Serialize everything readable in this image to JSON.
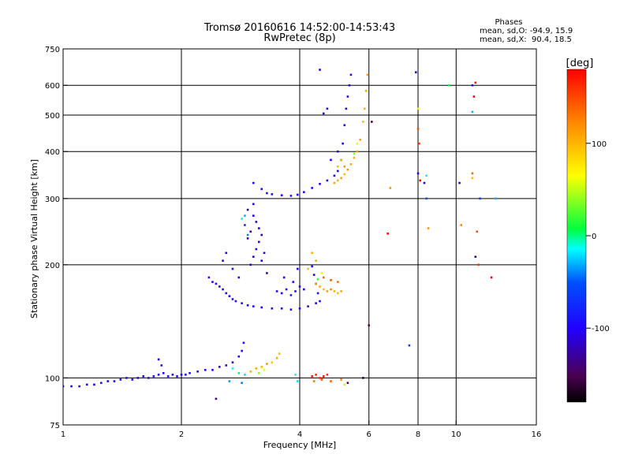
{
  "chart_data": {
    "type": "scatter",
    "title": "Tromsø 20160616 14:52:00-14:53:43",
    "subtitle": "RwPretec (8p)",
    "xlabel": "Frequency [MHz]",
    "ylabel": "Stationary phase Virtual Height [km]",
    "x_scale": "log",
    "y_scale": "log",
    "xlim": [
      1,
      16
    ],
    "ylim": [
      75,
      750
    ],
    "grid": true,
    "x_ticks": [
      {
        "value": 1,
        "label": "1"
      },
      {
        "value": 2,
        "label": "2"
      },
      {
        "value": 4,
        "label": "4"
      },
      {
        "value": 6,
        "label": "6"
      },
      {
        "value": 8,
        "label": "8"
      },
      {
        "value": 10,
        "label": "10"
      },
      {
        "value": 16,
        "label": "16"
      }
    ],
    "x_grid": [
      2,
      4,
      6,
      8,
      10
    ],
    "y_ticks": [
      {
        "value": 75,
        "label": "75"
      },
      {
        "value": 100,
        "label": "100"
      },
      {
        "value": 200,
        "label": "200"
      },
      {
        "value": 300,
        "label": "300"
      },
      {
        "value": 400,
        "label": "400"
      },
      {
        "value": 500,
        "label": "500"
      },
      {
        "value": 600,
        "label": "600"
      },
      {
        "value": 750,
        "label": "750"
      }
    ],
    "y_grid": [
      100,
      200,
      300,
      400,
      500,
      600
    ],
    "stats": {
      "heading": "Phases",
      "line1": "mean, sd,O: -94.9, 15.9",
      "line2": "mean, sd,X:  90.4, 18.5"
    },
    "colorbar": {
      "label": "[deg]",
      "range": [
        -180,
        180
      ],
      "ticks": [
        {
          "value": 100,
          "label": "100"
        },
        {
          "value": 0,
          "label": "0"
        },
        {
          "value": -100,
          "label": "-100"
        }
      ]
    },
    "series": [
      {
        "points": [
          [
            1.0,
            95,
            -95
          ],
          [
            1.05,
            95,
            -100
          ],
          [
            1.1,
            95,
            -90
          ],
          [
            1.15,
            96,
            -95
          ],
          [
            1.2,
            96,
            -100
          ],
          [
            1.25,
            97,
            -92
          ],
          [
            1.3,
            98,
            -98
          ],
          [
            1.35,
            98,
            -95
          ],
          [
            1.4,
            99,
            -100
          ],
          [
            1.45,
            100,
            -90
          ],
          [
            1.5,
            99,
            -95
          ],
          [
            1.55,
            100,
            -105
          ],
          [
            1.6,
            101,
            -95
          ],
          [
            1.65,
            100,
            -92
          ],
          [
            1.7,
            101,
            -98
          ],
          [
            1.75,
            102,
            -95
          ],
          [
            1.8,
            103,
            -100
          ],
          [
            1.85,
            101,
            -95
          ],
          [
            1.9,
            102,
            -90
          ],
          [
            1.95,
            101,
            -95
          ],
          [
            2.0,
            102,
            -100
          ],
          [
            2.05,
            102,
            -95
          ],
          [
            2.1,
            103,
            -92
          ],
          [
            2.2,
            104,
            -95
          ],
          [
            2.3,
            105,
            -98
          ],
          [
            2.4,
            105,
            -95
          ],
          [
            2.5,
            107,
            -100
          ],
          [
            2.6,
            108,
            -95
          ],
          [
            2.7,
            110,
            -92
          ],
          [
            2.8,
            114,
            -95
          ],
          [
            2.85,
            118,
            -98
          ],
          [
            2.88,
            124,
            -95
          ],
          [
            1.75,
            112,
            -100
          ],
          [
            1.78,
            108,
            -95
          ],
          [
            2.7,
            106,
            -15
          ],
          [
            2.8,
            103,
            5
          ],
          [
            2.9,
            102,
            -20
          ],
          [
            2.85,
            97,
            -40
          ],
          [
            2.65,
            98,
            -35
          ],
          [
            2.45,
            88,
            -140
          ]
        ]
      },
      {
        "points": [
          [
            3.0,
            104,
            105
          ],
          [
            3.1,
            106,
            110
          ],
          [
            3.2,
            107,
            100
          ],
          [
            3.3,
            109,
            120
          ],
          [
            3.4,
            110,
            95
          ],
          [
            3.5,
            113,
            110
          ],
          [
            3.55,
            116,
            100
          ],
          [
            3.15,
            103,
            40
          ],
          [
            3.25,
            105,
            60
          ]
        ]
      },
      {
        "points": [
          [
            4.3,
            101,
            170
          ],
          [
            4.4,
            102,
            160
          ],
          [
            4.5,
            100,
            165
          ],
          [
            4.6,
            101,
            175
          ],
          [
            4.7,
            102,
            160
          ],
          [
            4.35,
            98,
            130
          ],
          [
            4.55,
            99,
            150
          ],
          [
            4.8,
            98,
            140
          ],
          [
            5.1,
            99,
            130
          ],
          [
            5.2,
            96,
            50
          ],
          [
            5.3,
            97,
            -150
          ],
          [
            3.9,
            102,
            -10
          ],
          [
            3.95,
            98,
            -20
          ]
        ]
      },
      {
        "points": [
          [
            2.35,
            185,
            -95
          ],
          [
            2.4,
            180,
            -100
          ],
          [
            2.45,
            178,
            -95
          ],
          [
            2.5,
            175,
            -92
          ],
          [
            2.55,
            172,
            -98
          ],
          [
            2.6,
            168,
            -95
          ],
          [
            2.65,
            165,
            -100
          ],
          [
            2.7,
            162,
            -95
          ],
          [
            2.75,
            160,
            -92
          ],
          [
            2.85,
            158,
            -95
          ],
          [
            2.95,
            156,
            -98
          ],
          [
            3.05,
            155,
            -95
          ],
          [
            3.2,
            154,
            -100
          ],
          [
            3.4,
            153,
            -95
          ],
          [
            3.6,
            153,
            -92
          ],
          [
            3.8,
            152,
            -95
          ],
          [
            4.0,
            153,
            -98
          ],
          [
            4.2,
            155,
            -95
          ],
          [
            4.4,
            158,
            -100
          ],
          [
            4.5,
            160,
            -95
          ],
          [
            4.45,
            168,
            -92
          ],
          [
            4.4,
            178,
            -95
          ],
          [
            4.35,
            188,
            -100
          ],
          [
            4.3,
            198,
            -95
          ],
          [
            2.55,
            205,
            -95
          ],
          [
            2.6,
            215,
            -100
          ],
          [
            2.7,
            195,
            -92
          ],
          [
            2.8,
            185,
            -98
          ]
        ]
      },
      {
        "points": [
          [
            3.0,
            200,
            -110
          ],
          [
            3.05,
            210,
            -120
          ],
          [
            3.1,
            220,
            -105
          ],
          [
            3.15,
            230,
            -115
          ],
          [
            3.2,
            240,
            -125
          ],
          [
            3.15,
            250,
            -110
          ],
          [
            3.1,
            260,
            -120
          ],
          [
            3.05,
            270,
            -100
          ],
          [
            3.0,
            245,
            -130
          ],
          [
            2.95,
            235,
            -115
          ],
          [
            3.2,
            205,
            -105
          ],
          [
            3.25,
            215,
            -120
          ],
          [
            3.3,
            190,
            -110
          ],
          [
            2.95,
            280,
            -125
          ],
          [
            3.05,
            290,
            -110
          ],
          [
            2.9,
            255,
            -70
          ],
          [
            2.9,
            270,
            -30
          ],
          [
            2.85,
            265,
            -10
          ],
          [
            2.95,
            240,
            -40
          ]
        ]
      },
      {
        "points": [
          [
            3.5,
            170,
            -95
          ],
          [
            3.6,
            168,
            -100
          ],
          [
            3.7,
            172,
            -95
          ],
          [
            3.8,
            166,
            -92
          ],
          [
            3.9,
            170,
            -98
          ],
          [
            4.0,
            175,
            -95
          ],
          [
            4.1,
            172,
            -100
          ],
          [
            3.65,
            185,
            -95
          ],
          [
            3.85,
            180,
            -92
          ],
          [
            3.95,
            195,
            -98
          ]
        ]
      },
      {
        "points": [
          [
            4.4,
            178,
            120
          ],
          [
            4.5,
            175,
            110
          ],
          [
            4.6,
            172,
            100
          ],
          [
            4.7,
            170,
            115
          ],
          [
            4.8,
            172,
            125
          ],
          [
            4.9,
            170,
            105
          ],
          [
            5.0,
            168,
            100
          ],
          [
            5.1,
            170,
            110
          ],
          [
            4.6,
            185,
            140
          ],
          [
            4.8,
            182,
            150
          ],
          [
            5.0,
            180,
            135
          ],
          [
            4.4,
            205,
            110
          ],
          [
            4.3,
            215,
            105
          ],
          [
            4.2,
            195,
            95
          ],
          [
            4.55,
            190,
            60
          ],
          [
            4.45,
            183,
            20
          ]
        ]
      },
      {
        "points": [
          [
            3.8,
            305,
            -95
          ],
          [
            3.95,
            307,
            -100
          ],
          [
            4.1,
            312,
            -95
          ],
          [
            4.3,
            320,
            -92
          ],
          [
            4.5,
            328,
            -98
          ],
          [
            4.7,
            335,
            -95
          ],
          [
            4.9,
            345,
            -100
          ],
          [
            5.0,
            355,
            -95
          ],
          [
            5.1,
            380,
            -92
          ],
          [
            5.15,
            420,
            -98
          ],
          [
            5.2,
            470,
            -95
          ],
          [
            5.25,
            520,
            -100
          ],
          [
            5.3,
            560,
            -95
          ],
          [
            5.35,
            600,
            -92
          ],
          [
            5.4,
            640,
            -98
          ],
          [
            3.3,
            310,
            -95
          ],
          [
            3.4,
            308,
            -100
          ],
          [
            3.6,
            306,
            -95
          ],
          [
            3.2,
            318,
            -92
          ],
          [
            4.6,
            505,
            -98
          ],
          [
            4.7,
            520,
            -95
          ],
          [
            4.8,
            380,
            -100
          ],
          [
            5.0,
            400,
            -95
          ],
          [
            3.05,
            330,
            -92
          ]
        ]
      },
      {
        "points": [
          [
            4.9,
            330,
            110
          ],
          [
            5.0,
            335,
            105
          ],
          [
            5.1,
            340,
            115
          ],
          [
            5.2,
            348,
            100
          ],
          [
            5.3,
            358,
            120
          ],
          [
            5.4,
            370,
            110
          ],
          [
            5.5,
            385,
            105
          ],
          [
            5.6,
            400,
            115
          ],
          [
            5.7,
            430,
            110
          ],
          [
            5.8,
            480,
            100
          ],
          [
            5.85,
            520,
            105
          ],
          [
            5.9,
            580,
            110
          ],
          [
            5.95,
            640,
            115
          ],
          [
            5.0,
            365,
            95
          ],
          [
            5.1,
            380,
            105
          ],
          [
            5.2,
            365,
            120
          ],
          [
            5.6,
            420,
            60
          ],
          [
            5.5,
            395,
            40
          ]
        ]
      },
      {
        "points": [
          [
            4.5,
            660,
            -110
          ],
          [
            6.1,
            480,
            -150
          ],
          [
            7.9,
            650,
            -110
          ],
          [
            8.0,
            520,
            60
          ],
          [
            8.0,
            460,
            150
          ],
          [
            8.05,
            420,
            160
          ],
          [
            8.0,
            350,
            -100
          ],
          [
            8.1,
            335,
            180
          ],
          [
            8.4,
            345,
            -5
          ],
          [
            8.4,
            300,
            -50
          ],
          [
            8.5,
            250,
            120
          ],
          [
            8.3,
            330,
            -100
          ],
          [
            9.6,
            600,
            10
          ],
          [
            10.2,
            330,
            -110
          ],
          [
            10.3,
            255,
            130
          ],
          [
            11.0,
            600,
            -100
          ],
          [
            11.1,
            560,
            180
          ],
          [
            11.0,
            510,
            -30
          ],
          [
            11.0,
            350,
            140
          ],
          [
            11.0,
            340,
            100
          ],
          [
            11.2,
            610,
            170
          ],
          [
            11.3,
            245,
            150
          ],
          [
            11.2,
            210,
            -130
          ],
          [
            11.4,
            200,
            160
          ],
          [
            12.3,
            185,
            180
          ],
          [
            12.6,
            300,
            -30
          ],
          [
            11.5,
            300,
            -60
          ],
          [
            6.8,
            320,
            120
          ],
          [
            6.0,
            138,
            -150
          ],
          [
            7.6,
            122,
            -60
          ],
          [
            5.8,
            100,
            -160
          ],
          [
            6.7,
            242,
            175
          ]
        ]
      }
    ]
  }
}
